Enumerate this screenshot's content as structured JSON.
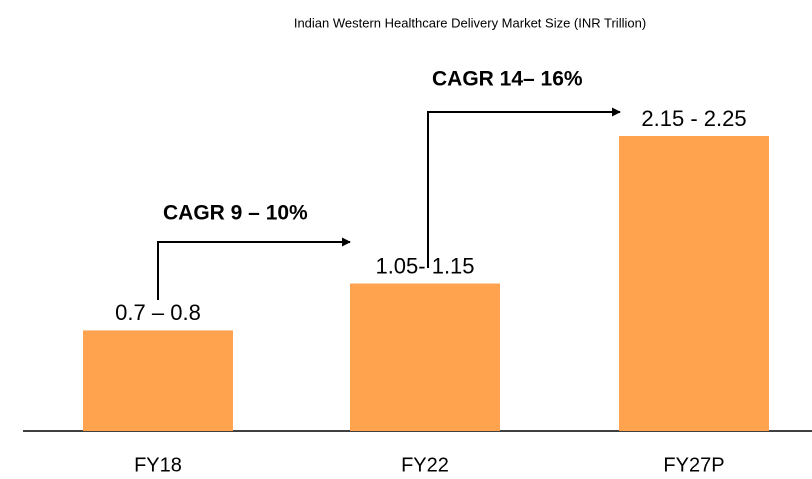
{
  "chart_data": {
    "type": "bar",
    "title": "Indian Western Healthcare Delivery Market Size (INR Trillion)",
    "categories": [
      "FY18",
      "FY22",
      "FY27P"
    ],
    "values": [
      0.75,
      1.1,
      2.2
    ],
    "value_labels": [
      "0.7 – 0.8",
      "1.05- 1.15",
      "2.15 - 2.25"
    ],
    "color": "#ffa34f",
    "annotations": [
      "CAGR 9 – 10%",
      "CAGR 14– 16%"
    ]
  }
}
